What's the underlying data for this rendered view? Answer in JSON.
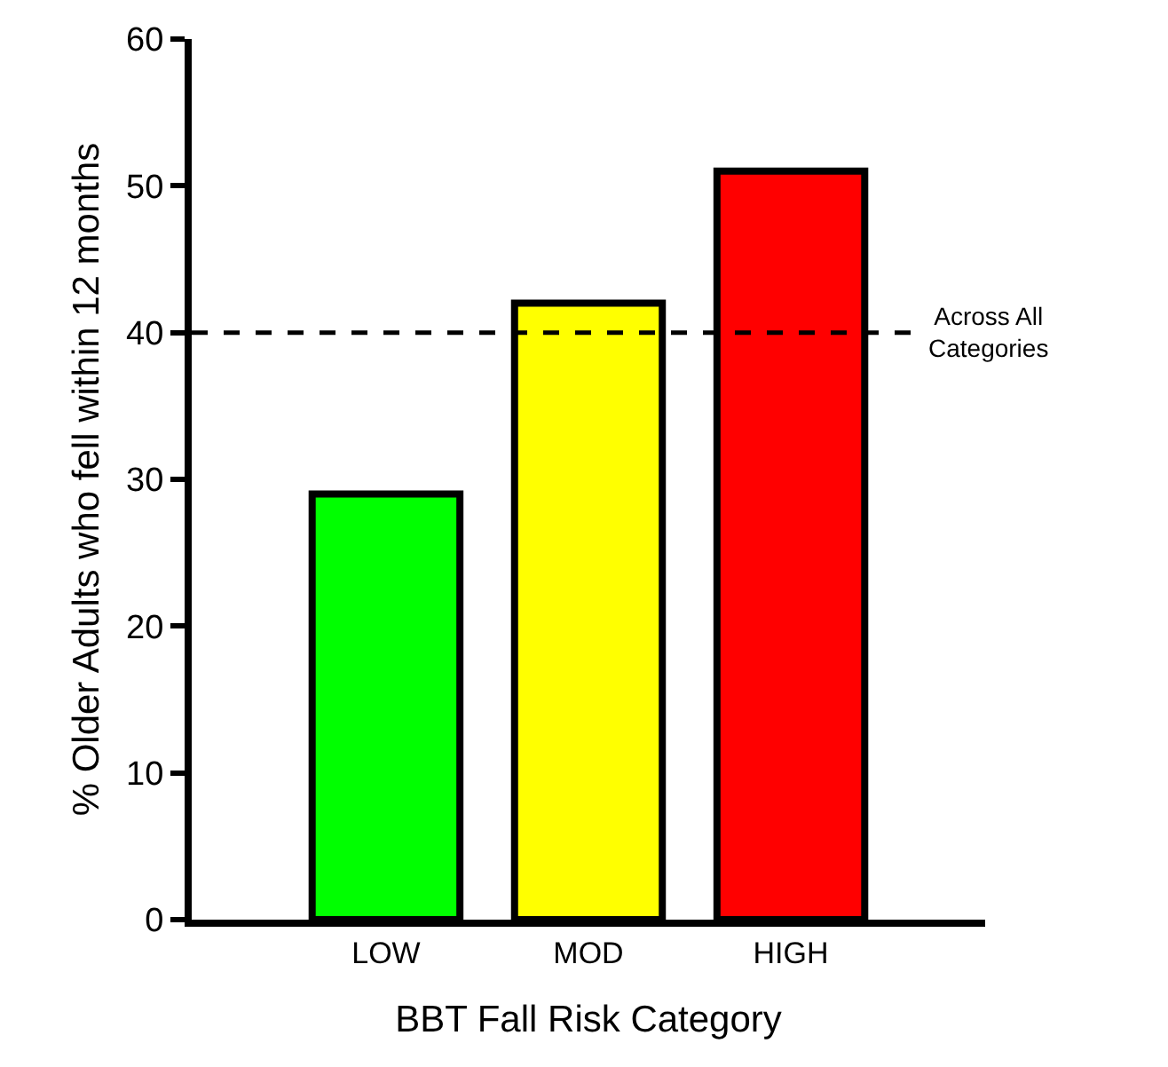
{
  "chart_data": {
    "type": "bar",
    "xlabel": "BBT Fall Risk Category",
    "ylabel": "% Older Adults who fell within 12 months",
    "categories": [
      "LOW",
      "MOD",
      "HIGH"
    ],
    "values": [
      29,
      42,
      51
    ],
    "colors": [
      "#00ff00",
      "#ffff00",
      "#ff0000"
    ],
    "ylim": [
      0,
      60
    ],
    "yticks": [
      0,
      10,
      20,
      30,
      40,
      50,
      60
    ],
    "ref_lines": [
      {
        "axis": "y",
        "value": 40,
        "label": "Across All Categories",
        "line_style": "dashed",
        "color": "#000000"
      }
    ]
  }
}
